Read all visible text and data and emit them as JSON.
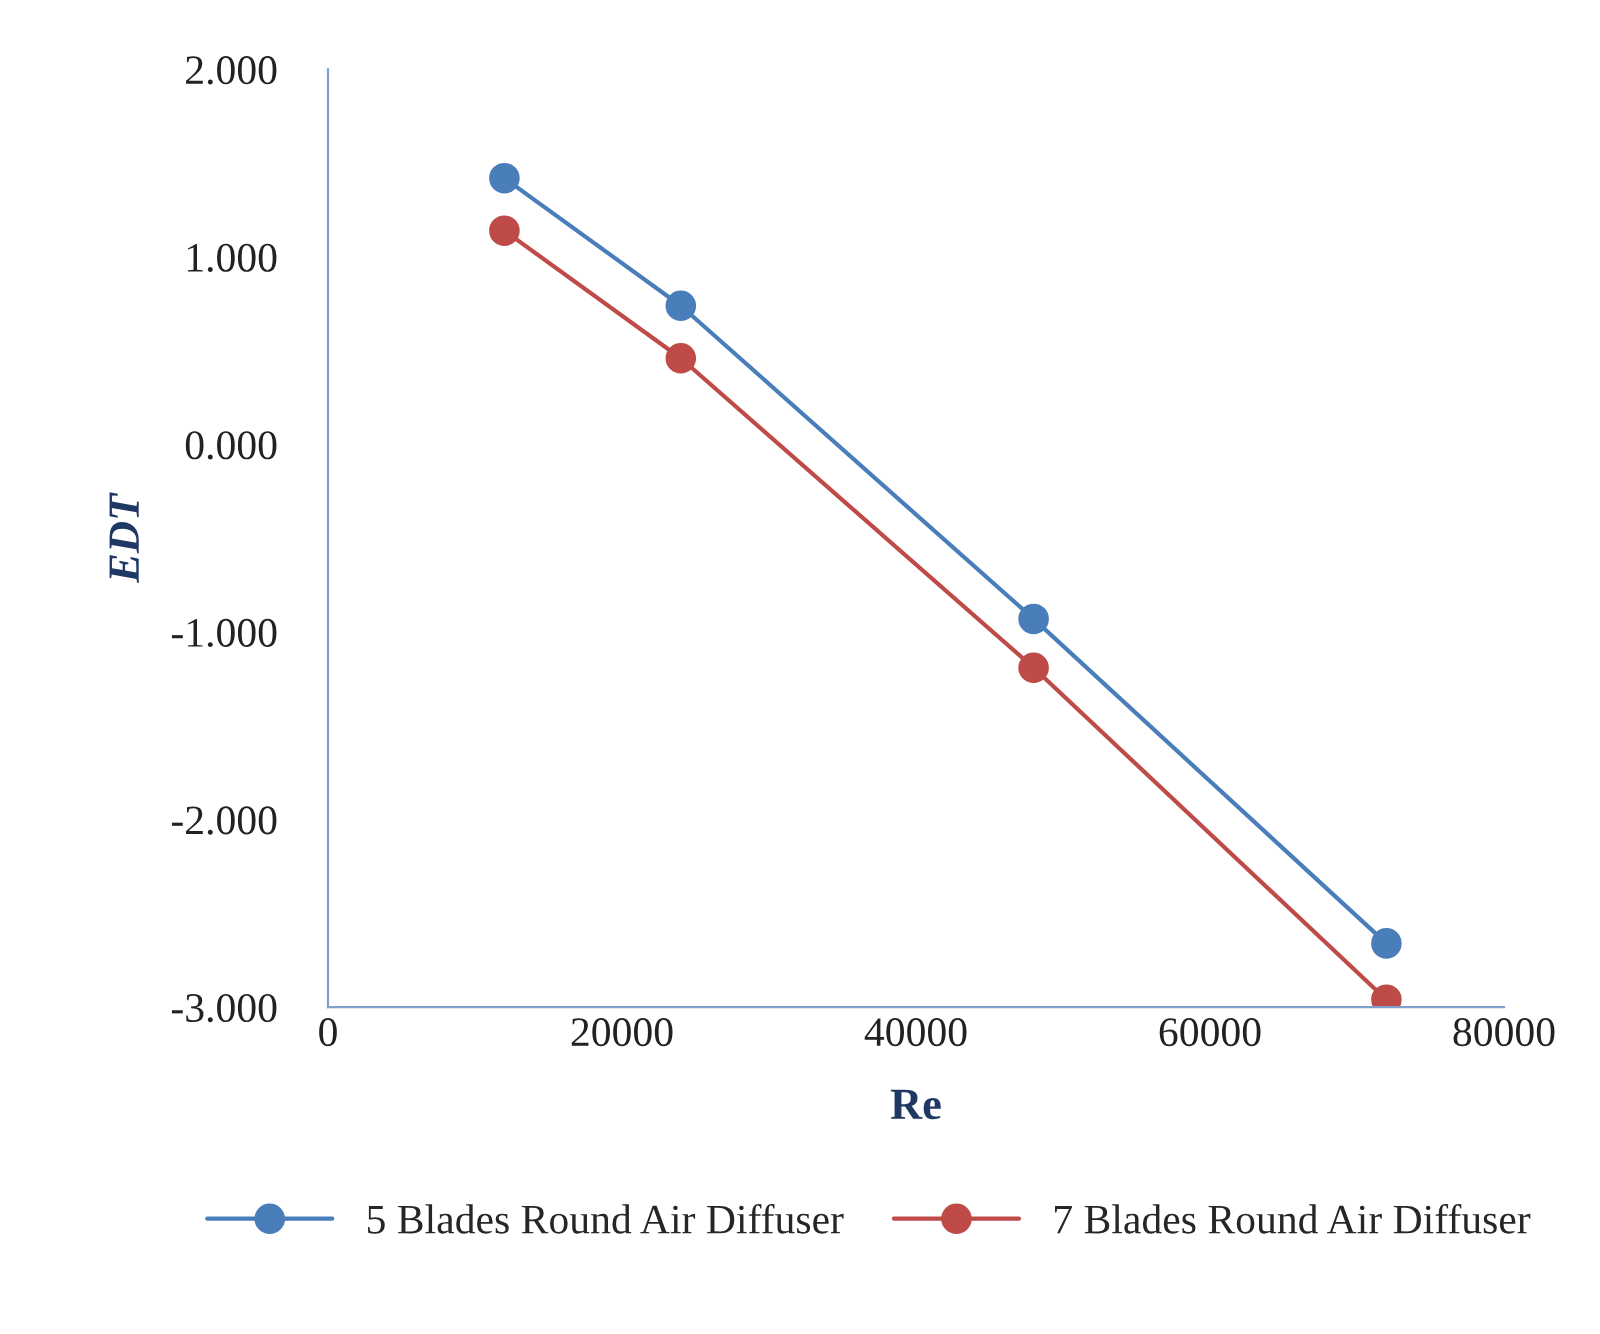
{
  "chart_data": {
    "type": "line",
    "xlabel": "Re",
    "ylabel": "EDT",
    "x": [
      12000,
      24000,
      48000,
      72000
    ],
    "series": [
      {
        "name": "5 Blades Round Air Diffuser",
        "color": "#4a7ebb",
        "values": [
          1.42,
          0.74,
          -0.93,
          -2.66
        ]
      },
      {
        "name": "7 Blades Round Air Diffuser",
        "color": "#be4b48",
        "values": [
          1.14,
          0.46,
          -1.19,
          -2.96
        ]
      }
    ],
    "xlim": [
      0,
      80000
    ],
    "xticks": [
      0,
      20000,
      40000,
      60000,
      80000
    ],
    "ylim": [
      -3,
      2
    ],
    "yticks": [
      {
        "value": 2,
        "label": "2.000"
      },
      {
        "value": 1,
        "label": "1.000"
      },
      {
        "value": 0,
        "label": "0.000"
      },
      {
        "value": -1,
        "label": "-1.000"
      },
      {
        "value": -2,
        "label": "-2.000"
      },
      {
        "value": -3,
        "label": "-3.000"
      }
    ],
    "marker": "circle",
    "line_style": "solid",
    "grid": false,
    "legend": "bottom"
  }
}
